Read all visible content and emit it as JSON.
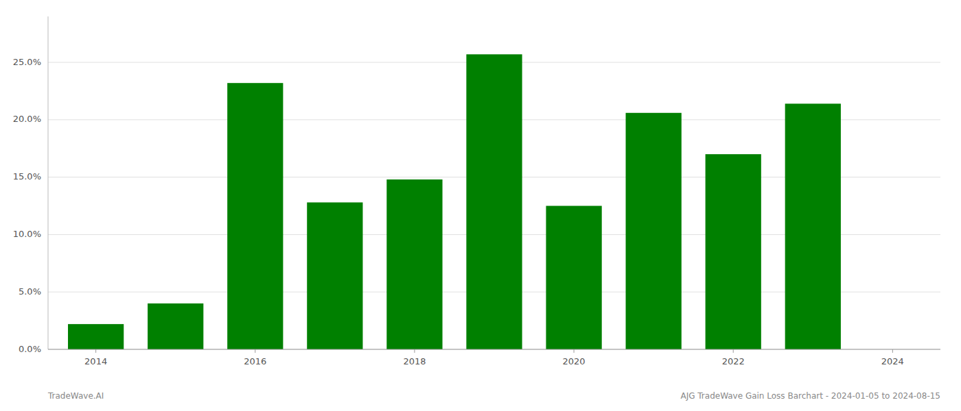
{
  "chart_data": {
    "type": "bar",
    "x": [
      2014,
      2015,
      2016,
      2017,
      2018,
      2019,
      2020,
      2021,
      2022,
      2023
    ],
    "values": [
      0.022,
      0.04,
      0.232,
      0.128,
      0.148,
      0.257,
      0.125,
      0.206,
      0.17,
      0.214
    ],
    "color": "#008000",
    "xlim": [
      2013.4,
      2024.6
    ],
    "xticks": [
      2014,
      2016,
      2018,
      2020,
      2022,
      2024
    ],
    "ylim": [
      0,
      0.29
    ],
    "yticks": [
      {
        "value": 0.0,
        "label": "0.0%"
      },
      {
        "value": 0.05,
        "label": "5.0%"
      },
      {
        "value": 0.1,
        "label": "10.0%"
      },
      {
        "value": 0.15,
        "label": "15.0%"
      },
      {
        "value": 0.2,
        "label": "20.0%"
      },
      {
        "value": 0.25,
        "label": "25.0%"
      }
    ],
    "grid": true,
    "annotations": [
      "TradeWave.AI",
      "AJG TradeWave Gain Loss Barchart - 2024-01-05 to 2024-08-15"
    ]
  }
}
